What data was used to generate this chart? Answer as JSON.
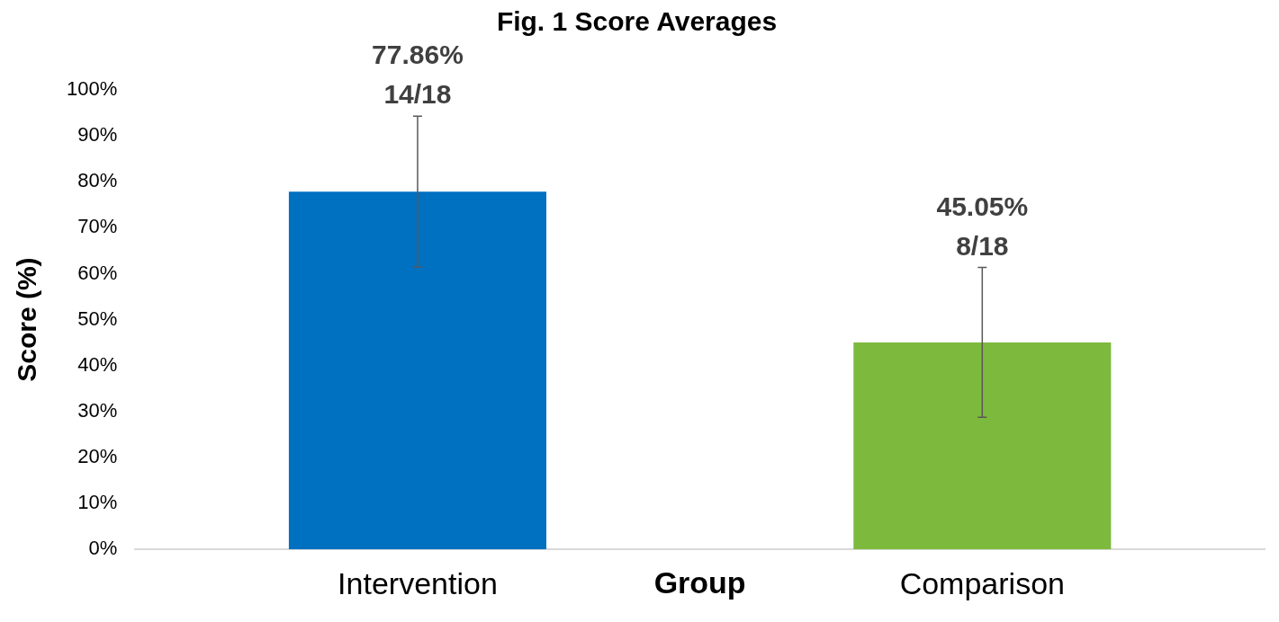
{
  "chart_data": {
    "type": "bar",
    "title": "Fig. 1 Score Averages",
    "xlabel": "Group",
    "ylabel": "Score (%)",
    "categories": [
      "Intervention",
      "Comparison"
    ],
    "values": [
      77.86,
      45.05
    ],
    "colors": [
      "#0070c0",
      "#7db93d"
    ],
    "errors": [
      16.4,
      16.3
    ],
    "value_labels": [
      "77.86%\n14/18",
      "45.05%\n8/18"
    ],
    "ylim": [
      0,
      100
    ],
    "yticks": [
      {
        "value": 0,
        "label": "0%"
      },
      {
        "value": 10,
        "label": "10%"
      },
      {
        "value": 20,
        "label": "20%"
      },
      {
        "value": 30,
        "label": "30%"
      },
      {
        "value": 40,
        "label": "40%"
      },
      {
        "value": 50,
        "label": "50%"
      },
      {
        "value": 60,
        "label": "60%"
      },
      {
        "value": 70,
        "label": "70%"
      },
      {
        "value": 80,
        "label": "80%"
      },
      {
        "value": 90,
        "label": "90%"
      },
      {
        "value": 100,
        "label": "100%"
      }
    ],
    "grid": false,
    "legend": false
  }
}
